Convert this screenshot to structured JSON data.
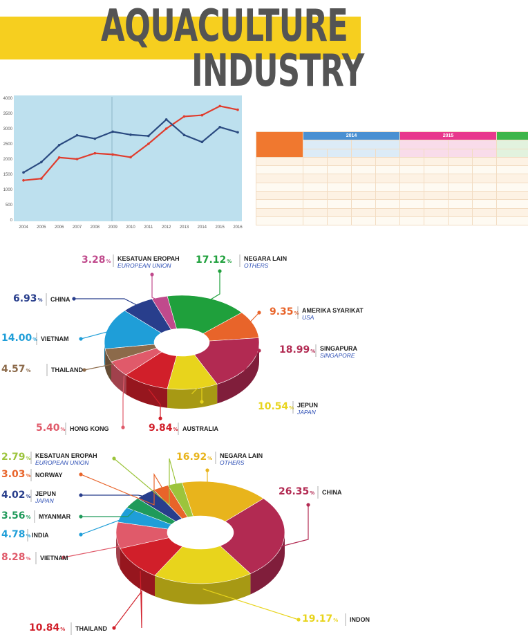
{
  "title": {
    "line1": "AQUACULTURE",
    "line2": "INDUSTRY"
  },
  "colors": {
    "accent_yellow": "#f6cf1f",
    "title_gray": "#545454"
  },
  "chart_data": [
    {
      "type": "line",
      "x": [
        "2004",
        "2005",
        "2006",
        "2007",
        "2008",
        "2009",
        "2010",
        "2011",
        "2012",
        "2013",
        "2014",
        "2015",
        "2016"
      ],
      "ylim": [
        0,
        4000
      ],
      "yticks": [
        "0",
        "500",
        "1000",
        "1500",
        "2000",
        "2500",
        "3000",
        "3500",
        "4000"
      ],
      "grid": false,
      "series": [
        {
          "color": "#e03c2d",
          "values": [
            1300,
            1360,
            2050,
            2000,
            2190,
            2150,
            2060,
            2500,
            3000,
            3400,
            3440,
            3740,
            3620
          ]
        },
        {
          "color": "#2a4a80",
          "values": [
            1560,
            1900,
            2460,
            2780,
            2670,
            2900,
            2800,
            2760,
            3300,
            2790,
            2560,
            3050,
            2880
          ]
        }
      ]
    },
    {
      "type": "pie",
      "style": "donut-3d",
      "slices": [
        {
          "pct": "17.12",
          "value": 17.12,
          "color": "#1fa03c",
          "label": "NEGARA LAIN",
          "label_en": "OTHERS"
        },
        {
          "pct": "9.35",
          "value": 9.35,
          "color": "#e8642a",
          "label": "AMERIKA SYARIKAT",
          "label_en": "USA"
        },
        {
          "pct": "18.99",
          "value": 18.99,
          "color": "#b22a52",
          "label": "SINGAPURA",
          "label_en": "SINGAPORE"
        },
        {
          "pct": "10.54",
          "value": 10.54,
          "color": "#e8d41c",
          "label": "JEPUN",
          "label_en": "JAPAN"
        },
        {
          "pct": "9.84",
          "value": 9.84,
          "color": "#d11f2a",
          "label": "AUSTRALIA",
          "label_en": ""
        },
        {
          "pct": "5.40",
          "value": 5.4,
          "color": "#e05a6a",
          "label": "HONG KONG",
          "label_en": ""
        },
        {
          "pct": "4.57",
          "value": 4.57,
          "color": "#8c6a4a",
          "label": "THAILAND",
          "label_en": ""
        },
        {
          "pct": "14.00",
          "value": 14.0,
          "color": "#1f9ed8",
          "label": "VIETNAM",
          "label_en": ""
        },
        {
          "pct": "6.93",
          "value": 6.93,
          "color": "#283e8c",
          "label": "CHINA",
          "label_en": ""
        },
        {
          "pct": "3.28",
          "value": 3.28,
          "color": "#c04a8c",
          "label": "KESATUAN EROPAH",
          "label_en": "EUROPEAN UNION"
        }
      ]
    },
    {
      "type": "pie",
      "style": "donut-3d",
      "slices": [
        {
          "pct": "16.92",
          "value": 16.92,
          "color": "#e8b41c",
          "label": "NEGARA LAIN",
          "label_en": "OTHERS"
        },
        {
          "pct": "26.35",
          "value": 26.35,
          "color": "#b22a52",
          "label": "CHINA",
          "label_en": ""
        },
        {
          "pct": "19.17",
          "value": 19.17,
          "color": "#e8d41c",
          "label": "INDON",
          "label_en": ""
        },
        {
          "pct": "10.84",
          "value": 10.84,
          "color": "#d11f2a",
          "label": "THAILAND",
          "label_en": ""
        },
        {
          "pct": "8.28",
          "value": 8.28,
          "color": "#e05a6a",
          "label": "VIETNAM",
          "label_en": ""
        },
        {
          "pct": "4.78",
          "value": 4.78,
          "color": "#1f9ed8",
          "label": "INDIA",
          "label_en": ""
        },
        {
          "pct": "3.56",
          "value": 3.56,
          "color": "#1f9a5a",
          "label": "MYANMAR",
          "label_en": ""
        },
        {
          "pct": "4.02",
          "value": 4.02,
          "color": "#283e8c",
          "label": "JEPUN",
          "label_en": "JAPAN"
        },
        {
          "pct": "3.03",
          "value": 3.03,
          "color": "#e8642a",
          "label": "NORWAY",
          "label_en": ""
        },
        {
          "pct": "2.79",
          "value": 2.79,
          "color": "#9cc43c",
          "label": "KESATUAN EROPAH",
          "label_en": "EUROPEAN UNION"
        }
      ]
    }
  ],
  "table": {
    "year_2014": "2014",
    "year_2015": "2015"
  }
}
